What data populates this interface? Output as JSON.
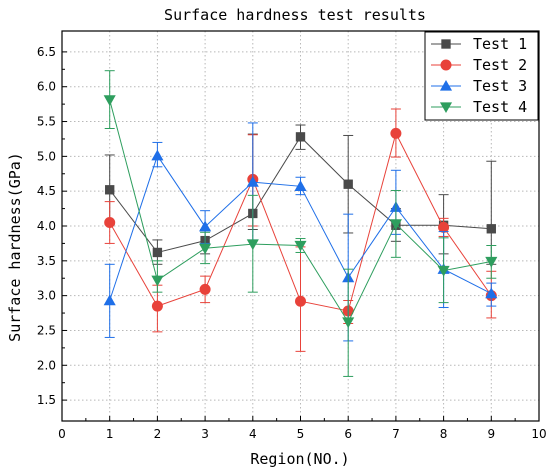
{
  "chart_data": {
    "type": "line",
    "title": "Surface hardness test results",
    "xlabel": "Region(NO.)",
    "ylabel": "Surface hardness(GPa)",
    "xlim": [
      0,
      10
    ],
    "ylim": [
      1.2,
      6.8
    ],
    "xticks": [
      0,
      1,
      2,
      3,
      4,
      5,
      6,
      7,
      8,
      9,
      10
    ],
    "yticks": [
      1.5,
      2.0,
      2.5,
      3.0,
      3.5,
      4.0,
      4.5,
      5.0,
      5.5,
      6.0,
      6.5
    ],
    "ytick_labels": [
      "1.5",
      "2.0",
      "2.5",
      "3.0",
      "3.5",
      "4.0",
      "4.5",
      "5.0",
      "5.5",
      "6.0",
      "6.5"
    ],
    "grid": true,
    "legend_position": "top-right",
    "x": [
      1,
      2,
      3,
      4,
      5,
      6,
      7,
      8,
      9
    ],
    "series": [
      {
        "name": "Test 1",
        "color": "#4a4a4a",
        "marker": "square",
        "values": [
          4.52,
          3.62,
          3.79,
          4.18,
          5.28,
          4.6,
          4.01,
          4.01,
          3.96
        ],
        "err_low": [
          4.02,
          3.45,
          3.6,
          3.95,
          5.1,
          3.9,
          3.78,
          3.6,
          3.45
        ],
        "err_high": [
          5.02,
          3.8,
          3.95,
          5.32,
          5.45,
          5.3,
          4.25,
          4.45,
          4.93
        ]
      },
      {
        "name": "Test 2",
        "color": "#e8423a",
        "marker": "circle",
        "values": [
          4.05,
          2.85,
          3.09,
          4.67,
          2.92,
          2.78,
          5.33,
          3.98,
          3.0
        ],
        "err_low": [
          3.75,
          2.48,
          2.9,
          4.0,
          2.2,
          2.6,
          4.99,
          3.85,
          2.68
        ],
        "err_high": [
          4.35,
          3.15,
          3.28,
          5.31,
          3.7,
          2.93,
          5.68,
          4.11,
          3.35
        ]
      },
      {
        "name": "Test 3",
        "color": "#1f6fe8",
        "marker": "triangle-up",
        "values": [
          2.93,
          5.01,
          3.99,
          4.63,
          4.57,
          3.26,
          4.27,
          3.38,
          3.03
        ],
        "err_low": [
          2.4,
          4.85,
          3.75,
          3.8,
          4.45,
          2.35,
          3.88,
          2.83,
          2.85
        ],
        "err_high": [
          3.45,
          5.2,
          4.22,
          5.48,
          4.7,
          4.17,
          4.8,
          3.92,
          3.18
        ]
      },
      {
        "name": "Test 4",
        "color": "#2e9e5e",
        "marker": "triangle-down",
        "values": [
          5.81,
          3.22,
          3.68,
          3.74,
          3.72,
          2.62,
          4.03,
          3.36,
          3.49
        ],
        "err_low": [
          5.4,
          3.05,
          3.46,
          3.05,
          3.62,
          1.84,
          3.55,
          2.9,
          3.25
        ],
        "err_high": [
          6.23,
          3.5,
          3.91,
          4.44,
          3.82,
          3.38,
          4.51,
          3.83,
          3.72
        ]
      }
    ]
  }
}
